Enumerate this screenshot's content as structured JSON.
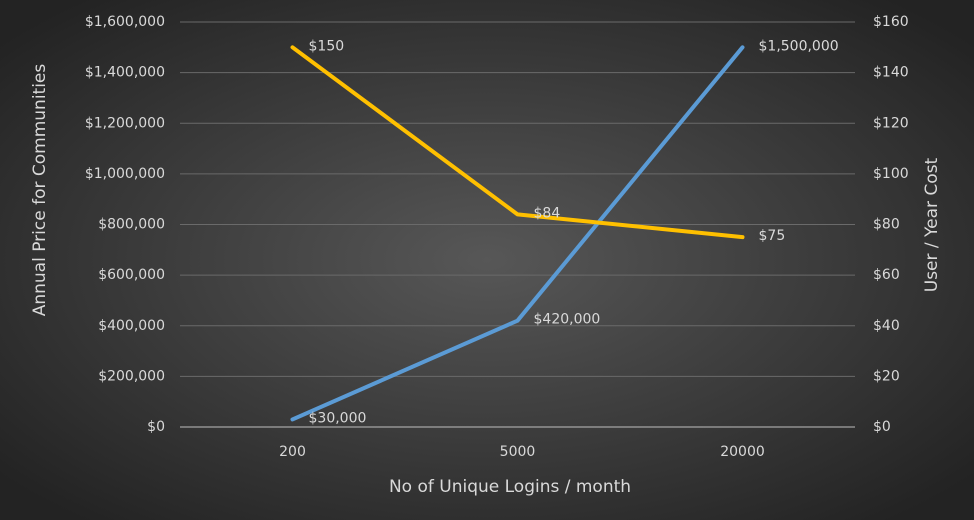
{
  "chart_data": {
    "type": "line",
    "categories": [
      "200",
      "5000",
      "20000"
    ],
    "xlabel": "No of Unique Logins / month",
    "ylabel": "Annual Price for Communities",
    "y2label": "User / Year Cost",
    "series": [
      {
        "color": "#5b9bd5",
        "values": [
          30000,
          420000,
          1500000
        ],
        "value_labels": [
          "$30,000",
          "$420,000",
          "$1,500,000"
        ]
      },
      {
        "color": "#ffc000",
        "axis": "y2",
        "values": [
          150,
          84,
          75
        ],
        "value_labels": [
          "$150",
          "$84",
          "$75"
        ]
      }
    ],
    "ylim": [
      0,
      1600000
    ],
    "yticks": [
      {
        "value": 0,
        "label": "$0"
      },
      {
        "value": 200000,
        "label": "$200,000"
      },
      {
        "value": 400000,
        "label": "$400,000"
      },
      {
        "value": 600000,
        "label": "$600,000"
      },
      {
        "value": 800000,
        "label": "$800,000"
      },
      {
        "value": 1000000,
        "label": "$1,000,000"
      },
      {
        "value": 1200000,
        "label": "$1,200,000"
      },
      {
        "value": 1400000,
        "label": "$1,400,000"
      },
      {
        "value": 1600000,
        "label": "$1,600,000"
      }
    ],
    "y2lim": [
      0,
      160
    ],
    "y2ticks": [
      {
        "value": 0,
        "label": "$0"
      },
      {
        "value": 20,
        "label": "$20"
      },
      {
        "value": 40,
        "label": "$40"
      },
      {
        "value": 60,
        "label": "$60"
      },
      {
        "value": 80,
        "label": "$80"
      },
      {
        "value": 100,
        "label": "$100"
      },
      {
        "value": 120,
        "label": "$120"
      },
      {
        "value": 140,
        "label": "$140"
      },
      {
        "value": 160,
        "label": "$160"
      }
    ],
    "grid": true
  }
}
